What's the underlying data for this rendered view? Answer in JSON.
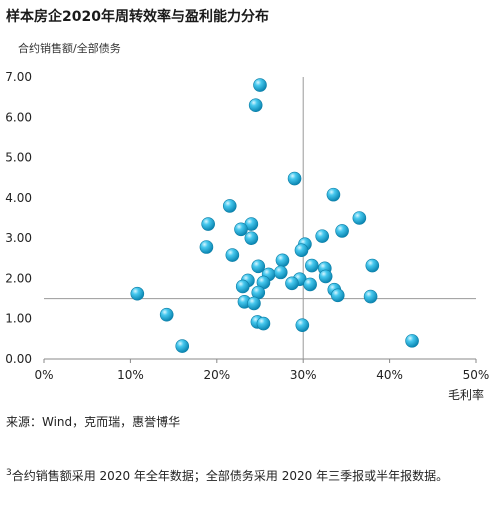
{
  "title": "样本房企2020年周转效率与盈利能力分布",
  "ylabel": "合约销售额/全部债务",
  "source": "来源：Wind，克而瑞，惠誉博华",
  "footnote_marker": "3",
  "footnote": "合约销售额采用 2020 年全年数据；全部债务采用 2020 年三季报或半年报数据。",
  "colors": {
    "point_fill": "#2bb7e0",
    "point_stroke": "#0d7fa7",
    "ref_line": "#9a9a9a",
    "axis": "#888888"
  },
  "chart_data": {
    "type": "scatter",
    "xlabel": "毛利率",
    "ylabel": "合约销售额/全部债务",
    "xlim": [
      0,
      0.5
    ],
    "ylim": [
      0,
      7.0
    ],
    "xticks": [
      "0%",
      "10%",
      "20%",
      "30%",
      "40%",
      "50%"
    ],
    "yticks": [
      "0.00",
      "1.00",
      "2.00",
      "3.00",
      "4.00",
      "5.00",
      "6.00",
      "7.00"
    ],
    "reference_lines": {
      "x": 0.3,
      "y": 1.5
    },
    "points": [
      {
        "x": 0.25,
        "y": 6.8
      },
      {
        "x": 0.245,
        "y": 6.3
      },
      {
        "x": 0.29,
        "y": 4.48
      },
      {
        "x": 0.335,
        "y": 4.08
      },
      {
        "x": 0.215,
        "y": 3.8
      },
      {
        "x": 0.19,
        "y": 3.35
      },
      {
        "x": 0.24,
        "y": 3.35
      },
      {
        "x": 0.228,
        "y": 3.22
      },
      {
        "x": 0.365,
        "y": 3.5
      },
      {
        "x": 0.345,
        "y": 3.18
      },
      {
        "x": 0.24,
        "y": 3.0
      },
      {
        "x": 0.322,
        "y": 3.05
      },
      {
        "x": 0.302,
        "y": 2.85
      },
      {
        "x": 0.298,
        "y": 2.7
      },
      {
        "x": 0.188,
        "y": 2.78
      },
      {
        "x": 0.218,
        "y": 2.58
      },
      {
        "x": 0.276,
        "y": 2.45
      },
      {
        "x": 0.248,
        "y": 2.3
      },
      {
        "x": 0.26,
        "y": 2.1
      },
      {
        "x": 0.274,
        "y": 2.15
      },
      {
        "x": 0.31,
        "y": 2.32
      },
      {
        "x": 0.325,
        "y": 2.25
      },
      {
        "x": 0.38,
        "y": 2.32
      },
      {
        "x": 0.236,
        "y": 1.95
      },
      {
        "x": 0.296,
        "y": 1.98
      },
      {
        "x": 0.326,
        "y": 2.05
      },
      {
        "x": 0.254,
        "y": 1.9
      },
      {
        "x": 0.287,
        "y": 1.88
      },
      {
        "x": 0.308,
        "y": 1.85
      },
      {
        "x": 0.23,
        "y": 1.8
      },
      {
        "x": 0.336,
        "y": 1.72
      },
      {
        "x": 0.248,
        "y": 1.65
      },
      {
        "x": 0.108,
        "y": 1.62
      },
      {
        "x": 0.34,
        "y": 1.58
      },
      {
        "x": 0.378,
        "y": 1.55
      },
      {
        "x": 0.232,
        "y": 1.42
      },
      {
        "x": 0.243,
        "y": 1.38
      },
      {
        "x": 0.142,
        "y": 1.1
      },
      {
        "x": 0.247,
        "y": 0.92
      },
      {
        "x": 0.254,
        "y": 0.88
      },
      {
        "x": 0.299,
        "y": 0.84
      },
      {
        "x": 0.16,
        "y": 0.32
      },
      {
        "x": 0.426,
        "y": 0.45
      }
    ]
  }
}
